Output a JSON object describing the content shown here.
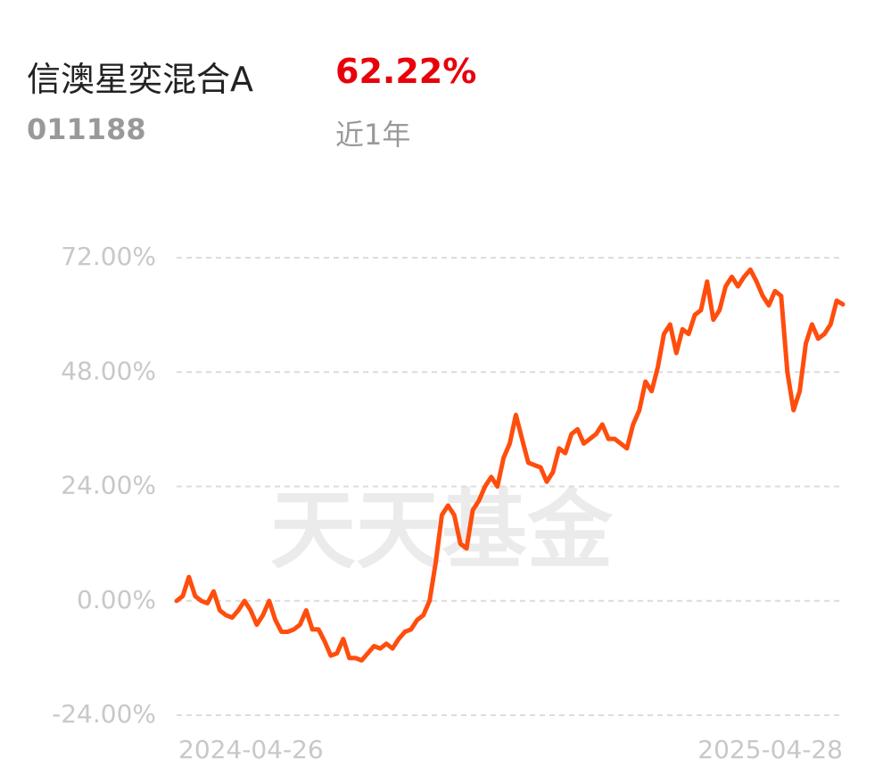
{
  "header": {
    "fund_name": "信澳星奕混合A",
    "return": "62.22%",
    "code": "011188",
    "period": "近1年"
  },
  "watermark": "天天基金",
  "chart_data": {
    "type": "line",
    "color": "#ff4d0d",
    "grid": true,
    "categories": [
      "2024-04-26",
      null,
      null,
      null,
      null,
      null,
      null,
      null,
      null,
      null,
      null,
      null,
      null,
      null,
      null,
      null,
      null,
      null,
      null,
      null,
      null,
      null,
      null,
      null,
      null,
      null,
      null,
      null,
      null,
      null,
      null,
      null,
      null,
      null,
      null,
      null,
      null,
      null,
      null,
      null,
      null,
      null,
      null,
      null,
      null,
      null,
      null,
      null,
      null,
      null,
      null,
      null,
      null,
      null,
      null,
      null,
      null,
      null,
      null,
      null,
      null,
      null,
      null,
      null,
      null,
      null,
      null,
      null,
      null,
      null,
      null,
      null,
      null,
      null,
      null,
      null,
      null,
      null,
      null,
      null,
      null,
      null,
      null,
      null,
      null,
      null,
      null,
      null,
      null,
      null,
      null,
      null,
      null,
      null,
      null,
      null,
      null,
      null,
      null,
      null,
      null,
      null,
      null,
      null,
      null,
      null,
      null,
      null,
      "2025-04-28"
    ],
    "values": [
      0,
      1,
      5,
      1,
      0,
      -0.5,
      2,
      -2,
      -3,
      -3.5,
      -2,
      0,
      -2,
      -5,
      -3,
      0,
      -4,
      -6.5,
      -6.5,
      -6,
      -5,
      -2,
      -6,
      -6,
      -8.5,
      -11.5,
      -11,
      -8,
      -12,
      -12,
      -12.5,
      -11,
      -9.5,
      -10,
      -9,
      -10,
      -8,
      -6.5,
      -6,
      -4,
      -3,
      0,
      8,
      18,
      20,
      18,
      12,
      11,
      19,
      21,
      24,
      26,
      24,
      30,
      33,
      39,
      34,
      29,
      28.5,
      28,
      25,
      27,
      32,
      31,
      35,
      36,
      33,
      34,
      35,
      37,
      34,
      34,
      33,
      32,
      37,
      40,
      46,
      44,
      49,
      56,
      58,
      52,
      57,
      56,
      60,
      61,
      67,
      59,
      61,
      66,
      68,
      66,
      68,
      69.5,
      67,
      64,
      62,
      65,
      64,
      48,
      40,
      44,
      54,
      58,
      55,
      56,
      58,
      63,
      62.22
    ],
    "ylim": [
      -24,
      72
    ],
    "yticks": [
      {
        "value": 72,
        "label": "72.00%"
      },
      {
        "value": 48,
        "label": "48.00%"
      },
      {
        "value": 24,
        "label": "24.00%"
      },
      {
        "value": 0,
        "label": "0.00%"
      },
      {
        "value": -24,
        "label": "-24.00%"
      }
    ]
  }
}
